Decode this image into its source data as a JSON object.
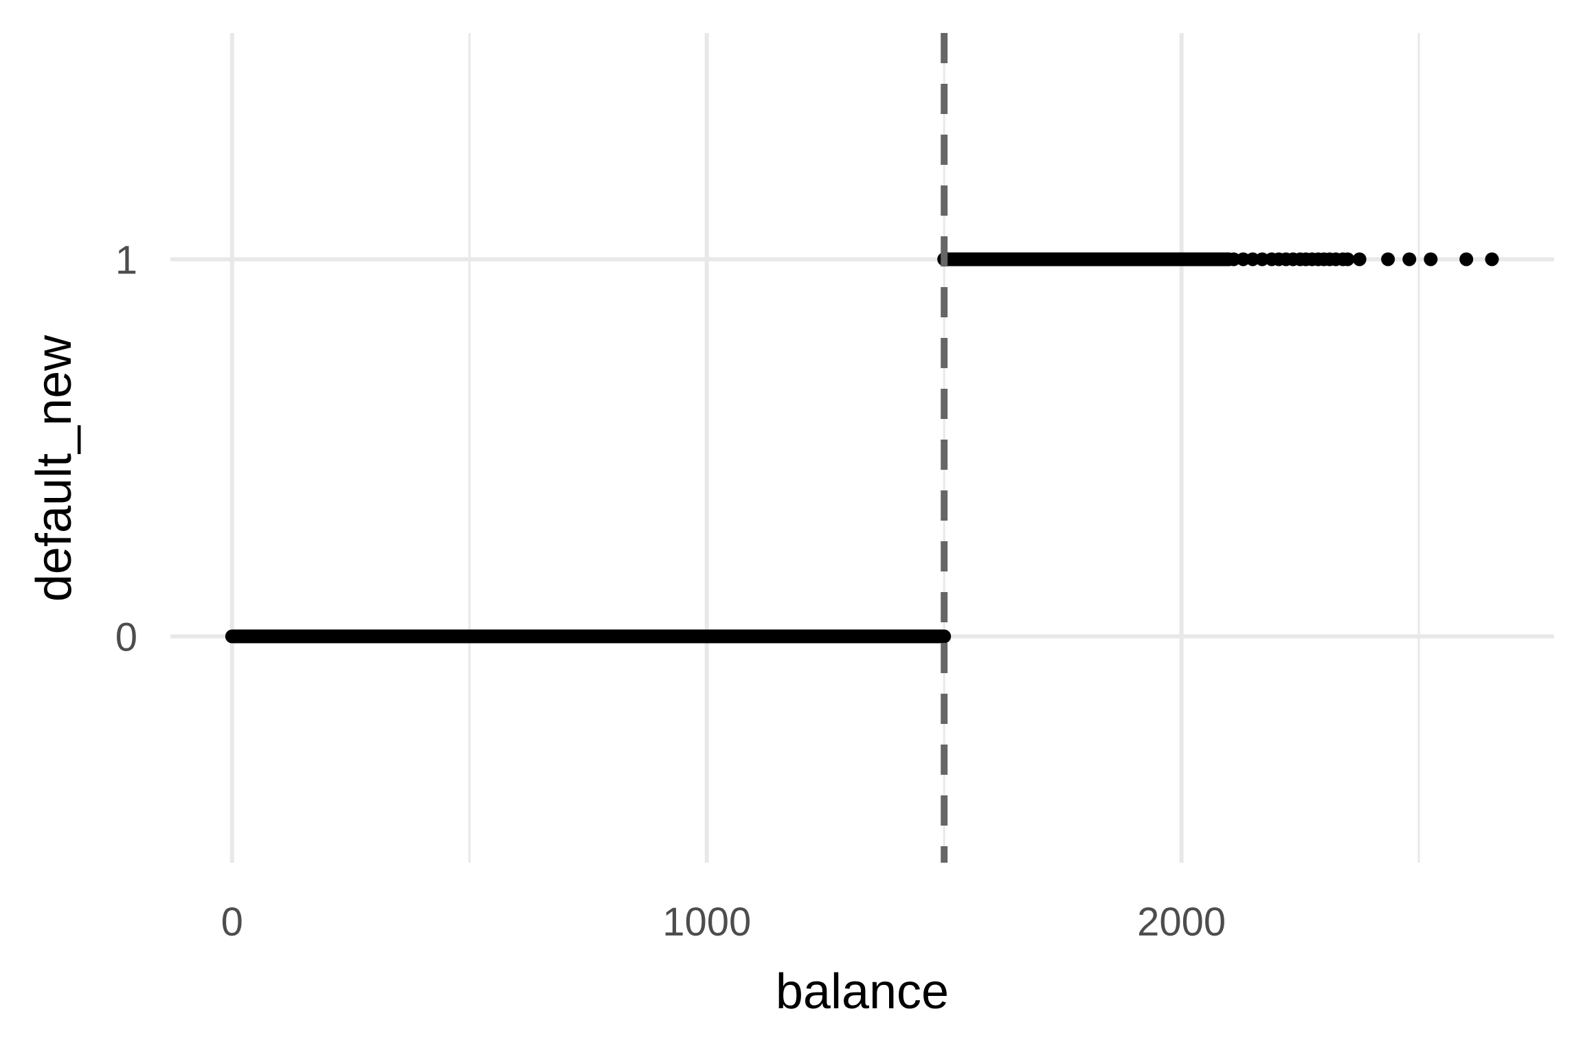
{
  "chart_data": {
    "type": "scatter",
    "title": "",
    "xlabel": "balance",
    "ylabel": "default_new",
    "xlim": [
      -130,
      2785
    ],
    "ylim": [
      -0.6,
      1.6
    ],
    "x_ticks": [
      0,
      1000,
      2000
    ],
    "x_minor_gridlines": [
      500,
      1500,
      2500
    ],
    "y_ticks": [
      0,
      1
    ],
    "grid": true,
    "legend": "none",
    "reference_line": {
      "x": 1500,
      "style": "dashed",
      "color": "#666666"
    },
    "series": [
      {
        "y": 0,
        "x_range": [
          0,
          1500
        ],
        "dense": true
      },
      {
        "y": 1,
        "x_range": [
          1500,
          2100
        ],
        "dense": true,
        "x": [
          2110,
          2130,
          2150,
          2170,
          2190,
          2205,
          2220,
          2235,
          2250,
          2262,
          2275,
          2288,
          2300,
          2312,
          2325,
          2340,
          2350,
          2375,
          2435,
          2480,
          2525,
          2600,
          2654
        ]
      }
    ],
    "colors": {
      "points": "#000000",
      "grid": "#e8e8e8",
      "reference": "#666666"
    }
  }
}
